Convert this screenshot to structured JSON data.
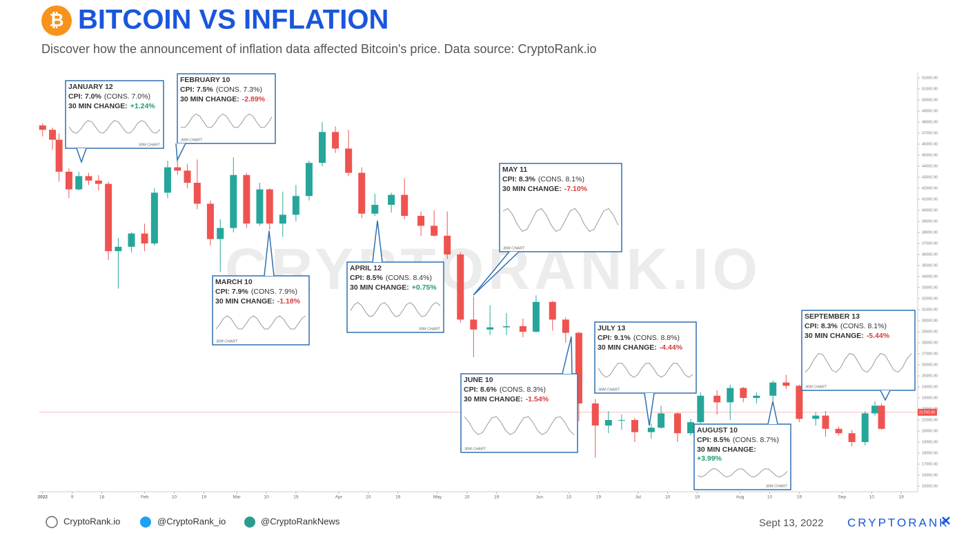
{
  "header": {
    "icon": "₿",
    "title": "BITCOIN VS INFLATION",
    "subtitle": "Discover how the announcement of inflation data affected Bitcoin's price. Data source: CryptoRank.io"
  },
  "chart_data": {
    "type": "candlestick",
    "watermark": "CRYPTORANK.IO",
    "up_color": "#26a69a",
    "down_color": "#ef5350",
    "x": [
      0,
      3,
      5,
      8,
      11,
      14,
      17,
      20,
      23,
      27,
      31,
      34,
      38,
      41,
      44,
      47,
      51,
      54,
      58,
      62,
      66,
      69,
      73,
      77,
      81,
      85,
      89,
      93,
      97,
      101,
      106,
      110,
      115,
      119,
      123,
      127,
      131,
      136,
      141,
      146,
      150,
      155,
      159,
      163,
      168,
      172,
      176,
      180,
      185,
      188,
      193,
      197,
      200,
      205,
      209,
      213,
      217,
      222,
      226,
      230,
      235,
      238,
      242,
      246,
      250,
      253,
      255
    ],
    "open": [
      47700,
      47300,
      46400,
      43500,
      41900,
      43100,
      42700,
      42400,
      36300,
      36700,
      37900,
      37000,
      41600,
      43900,
      43600,
      42500,
      40600,
      37400,
      38400,
      43200,
      38800,
      41900,
      38800,
      39600,
      41300,
      44300,
      47100,
      45600,
      43400,
      39700,
      40500,
      41400,
      39500,
      38600,
      37700,
      36000,
      30100,
      29200,
      29400,
      29500,
      29000,
      31700,
      30100,
      28900,
      22500,
      20500,
      21000,
      21000,
      19900,
      20300,
      21600,
      19800,
      20800,
      23200,
      22600,
      23900,
      23000,
      23200,
      24400,
      24100,
      21100,
      21400,
      20200,
      19800,
      19000,
      21600,
      22300
    ],
    "high": [
      47900,
      47500,
      47000,
      43800,
      43500,
      43400,
      43200,
      42600,
      37500,
      38000,
      38800,
      42000,
      44500,
      45800,
      44200,
      44600,
      40900,
      39200,
      44800,
      43400,
      42500,
      42000,
      41700,
      42300,
      44500,
      48000,
      47600,
      47300,
      43900,
      41500,
      41600,
      42900,
      39900,
      40000,
      39900,
      36200,
      32200,
      31400,
      30700,
      30200,
      32300,
      31800,
      30300,
      29000,
      22900,
      21800,
      21500,
      21200,
      20700,
      22300,
      21700,
      21100,
      23500,
      23700,
      24200,
      24000,
      23500,
      24600,
      25100,
      24200,
      21700,
      21800,
      20400,
      20100,
      21800,
      22700,
      22500
    ],
    "low": [
      46700,
      45500,
      42600,
      41100,
      41800,
      42300,
      41800,
      35500,
      32900,
      36200,
      36300,
      36800,
      41100,
      43200,
      42000,
      40100,
      36800,
      34400,
      38000,
      38400,
      38600,
      38200,
      37600,
      39000,
      40900,
      44000,
      45200,
      43100,
      39300,
      39500,
      39800,
      39200,
      37700,
      37600,
      35600,
      29800,
      26700,
      28700,
      28700,
      28500,
      28900,
      29100,
      28000,
      20900,
      17600,
      19800,
      20100,
      19000,
      19300,
      20200,
      19000,
      19600,
      20700,
      21500,
      21000,
      22600,
      22500,
      22700,
      23800,
      20800,
      20500,
      19500,
      19600,
      18600,
      18700,
      21400,
      20100
    ],
    "close": [
      47300,
      46400,
      43500,
      41900,
      43100,
      42700,
      42400,
      36300,
      36700,
      37900,
      37000,
      41600,
      43900,
      43600,
      42500,
      40600,
      37400,
      38400,
      43200,
      38800,
      41900,
      38800,
      39600,
      41300,
      44300,
      47100,
      45600,
      43400,
      39700,
      40500,
      41400,
      39500,
      38600,
      37700,
      36000,
      30100,
      29200,
      29400,
      29500,
      29000,
      31700,
      30100,
      28900,
      22500,
      20500,
      21000,
      21000,
      19900,
      20300,
      21600,
      19800,
      20800,
      23200,
      22600,
      23900,
      23000,
      23200,
      24400,
      24100,
      21100,
      21400,
      20200,
      19800,
      19000,
      21600,
      22300,
      20200
    ],
    "xlim": [
      -1,
      266
    ],
    "xticks": [
      {
        "value": 0,
        "label": "2022"
      },
      9,
      18,
      {
        "value": 31,
        "label": "Feb"
      },
      {
        "value": 40,
        "label": "10"
      },
      {
        "value": 49,
        "label": "19"
      },
      {
        "value": 59,
        "label": "Mar"
      },
      {
        "value": 68,
        "label": "10"
      },
      {
        "value": 77,
        "label": "19"
      },
      {
        "value": 90,
        "label": "Apr"
      },
      {
        "value": 99,
        "label": "10"
      },
      {
        "value": 108,
        "label": "19"
      },
      {
        "value": 120,
        "label": "May"
      },
      {
        "value": 129,
        "label": "10"
      },
      {
        "value": 138,
        "label": "19"
      },
      {
        "value": 151,
        "label": "Jun"
      },
      {
        "value": 160,
        "label": "10"
      },
      {
        "value": 169,
        "label": "19"
      },
      {
        "value": 181,
        "label": "Jul"
      },
      {
        "value": 190,
        "label": "10"
      },
      {
        "value": 199,
        "label": "19"
      },
      {
        "value": 212,
        "label": "Aug"
      },
      {
        "value": 221,
        "label": "10"
      },
      {
        "value": 230,
        "label": "19"
      },
      {
        "value": 243,
        "label": "Sep"
      },
      {
        "value": 252,
        "label": "10"
      },
      {
        "value": 261,
        "label": "19"
      }
    ],
    "ylim": [
      14500,
      52500
    ],
    "yticks": [
      {
        "value": 52000,
        "label": "52000.00"
      },
      {
        "value": 51000,
        "label": "51000.00"
      },
      {
        "value": 50000,
        "label": "50000.00"
      },
      {
        "value": 49000,
        "label": "49000.00"
      },
      {
        "value": 48000,
        "label": "48000.00"
      },
      {
        "value": 47000,
        "label": "47000.00"
      },
      {
        "value": 46000,
        "label": "46000.00"
      },
      {
        "value": 45000,
        "label": "45000.00"
      },
      {
        "value": 44000,
        "label": "44000.00"
      },
      {
        "value": 43000,
        "label": "43000.00"
      },
      {
        "value": 42000,
        "label": "42000.00"
      },
      {
        "value": 41000,
        "label": "41000.00"
      },
      {
        "value": 40000,
        "label": "40000.00"
      },
      {
        "value": 39000,
        "label": "39000.00"
      },
      {
        "value": 38000,
        "label": "38000.00"
      },
      {
        "value": 37000,
        "label": "37000.00"
      },
      {
        "value": 36000,
        "label": "36000.00"
      },
      {
        "value": 35000,
        "label": "35000.00"
      },
      {
        "value": 34000,
        "label": "34000.00"
      },
      {
        "value": 33000,
        "label": "33000.00"
      },
      {
        "value": 32000,
        "label": "32000.00"
      },
      {
        "value": 31000,
        "label": "31000.00"
      },
      {
        "value": 30000,
        "label": "30000.00"
      },
      {
        "value": 29000,
        "label": "29000.00"
      },
      {
        "value": 28000,
        "label": "28000.00"
      },
      {
        "value": 27000,
        "label": "27000.00"
      },
      {
        "value": 26000,
        "label": "26000.00"
      },
      {
        "value": 25000,
        "label": "25000.00"
      },
      {
        "value": 24000,
        "label": "24000.00"
      },
      {
        "value": 23000,
        "label": "23000.00"
      },
      {
        "value": 22000,
        "label": "22000.00"
      },
      {
        "value": 21000,
        "label": "21000.00"
      },
      {
        "value": 20000,
        "label": "20000.00"
      },
      {
        "value": 19000,
        "label": "19000.00"
      },
      {
        "value": 18000,
        "label": "18000.00"
      },
      {
        "value": 17000,
        "label": "17000.00"
      },
      {
        "value": 16000,
        "label": "16000.00"
      },
      {
        "value": 15000,
        "label": "15000.00"
      }
    ],
    "price_line": {
      "value": 21700,
      "label": "21700.00"
    },
    "grid": false
  },
  "annotations": [
    {
      "date": "JANUARY 12",
      "cpi": "CPI: 7.0%",
      "cons": "(CONS. 7.0%)",
      "change_label": "30 MIN CHANGE:",
      "change": "+1.24%",
      "chart_label": "30M CHART"
    },
    {
      "date": "FEBRUARY 10",
      "cpi": "CPI: 7.5%",
      "cons": "(CONS. 7.3%)",
      "change_label": "30 MIN CHANGE:",
      "change": "-2.89%",
      "chart_label": "30M CHART"
    },
    {
      "date": "MARCH 10",
      "cpi": "CPI: 7.9%",
      "cons": "(CONS. 7.9%)",
      "change_label": "30 MIN CHANGE:",
      "change": "-1.18%",
      "chart_label": "30M CHART"
    },
    {
      "date": "APRIL 12",
      "cpi": "CPI: 8.5%",
      "cons": "(CONS. 8.4%)",
      "change_label": "30 MIN CHANGE:",
      "change": "+0.75%",
      "chart_label": "30M CHART"
    },
    {
      "date": "MAY 11",
      "cpi": "CPI: 8.3%",
      "cons": "(CONS. 8.1%)",
      "change_label": "30 MIN CHANGE:",
      "change": "-7.10%",
      "chart_label": "30M CHART"
    },
    {
      "date": "JUNE 10",
      "cpi": "CPI: 8.6%",
      "cons": "(CONS. 8.3%)",
      "change_label": "30 MIN CHANGE:",
      "change": "-1.54%",
      "chart_label": "30M CHART"
    },
    {
      "date": "JULY 13",
      "cpi": "CPI: 9.1%",
      "cons": "(CONS. 8.8%)",
      "change_label": "30 MIN CHANGE:",
      "change": "-4.44%",
      "chart_label": "30M CHART"
    },
    {
      "date": "AUGUST 10",
      "cpi": "CPI: 8.5%",
      "cons": "(CONS. 8.7%)",
      "change_label": "30 MIN CHANGE:",
      "change": "+3.99%",
      "chart_label": "30M CHART"
    },
    {
      "date": "SEPTEMBER 13",
      "cpi": "CPI: 8.3%",
      "cons": "(CONS. 8.1%)",
      "change_label": "30 MIN CHANGE:",
      "change": "-5.44%",
      "chart_label": "30M CHART"
    }
  ],
  "footer": {
    "website": "CryptoRank.io",
    "twitter": "@CryptoRank_io",
    "telegram": "@CryptoRankNews",
    "date": "Sept 13, 2022",
    "brand": "CRYPTORANK"
  }
}
